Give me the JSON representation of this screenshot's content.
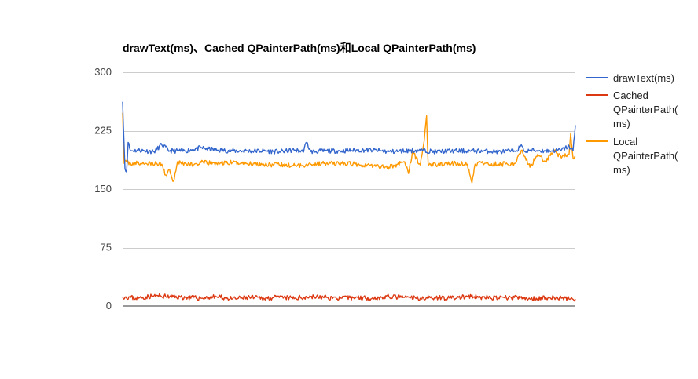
{
  "chart_data": {
    "type": "line",
    "title": "drawText(ms)、Cached QPainterPath(ms)和Local QPainterPath(ms)",
    "xlabel": "",
    "ylabel": "",
    "ylim": [
      0,
      300
    ],
    "yticks": [
      0,
      75,
      150,
      225,
      300
    ],
    "ytick_labels": [
      "0",
      "75",
      "150",
      "225",
      "300"
    ],
    "grid": true,
    "legend_position": "right",
    "series": [
      {
        "name": "drawText(ms)",
        "color": "#3366cc",
        "description_level": "around 200",
        "points": [
          [
            0,
            262
          ],
          [
            3,
            176
          ],
          [
            5,
            172
          ],
          [
            7,
            210
          ],
          [
            10,
            199
          ],
          [
            20,
            200
          ],
          [
            40,
            198
          ],
          [
            50,
            207
          ],
          [
            60,
            199
          ],
          [
            80,
            199
          ],
          [
            100,
            203
          ],
          [
            120,
            200
          ],
          [
            140,
            199
          ],
          [
            160,
            199
          ],
          [
            180,
            199
          ],
          [
            200,
            198
          ],
          [
            220,
            200
          ],
          [
            230,
            198
          ],
          [
            235,
            210
          ],
          [
            240,
            198
          ],
          [
            260,
            199
          ],
          [
            280,
            199
          ],
          [
            300,
            200
          ],
          [
            320,
            200
          ],
          [
            340,
            198
          ],
          [
            360,
            199
          ],
          [
            380,
            200
          ],
          [
            400,
            198
          ],
          [
            420,
            199
          ],
          [
            440,
            199
          ],
          [
            460,
            199
          ],
          [
            480,
            198
          ],
          [
            500,
            199
          ],
          [
            510,
            205
          ],
          [
            515,
            197
          ],
          [
            520,
            200
          ],
          [
            540,
            199
          ],
          [
            560,
            200
          ],
          [
            570,
            205
          ],
          [
            575,
            199
          ],
          [
            578,
            232
          ]
        ]
      },
      {
        "name": "Cached QPainterPath(ms)",
        "color": "#dc3912",
        "description_level": "around 10",
        "points": [
          [
            0,
            12
          ],
          [
            20,
            10
          ],
          [
            40,
            13
          ],
          [
            60,
            12
          ],
          [
            80,
            11
          ],
          [
            100,
            10
          ],
          [
            120,
            12
          ],
          [
            140,
            9
          ],
          [
            160,
            11
          ],
          [
            180,
            10
          ],
          [
            200,
            11
          ],
          [
            220,
            10
          ],
          [
            240,
            12
          ],
          [
            260,
            11
          ],
          [
            280,
            10
          ],
          [
            300,
            11
          ],
          [
            320,
            10
          ],
          [
            340,
            12
          ],
          [
            360,
            11
          ],
          [
            380,
            10
          ],
          [
            400,
            11
          ],
          [
            420,
            10
          ],
          [
            440,
            12
          ],
          [
            460,
            11
          ],
          [
            480,
            10
          ],
          [
            500,
            11
          ],
          [
            520,
            9
          ],
          [
            540,
            11
          ],
          [
            560,
            10
          ],
          [
            578,
            9
          ]
        ]
      },
      {
        "name": "Local QPainterPath(ms)",
        "color": "#ff9900",
        "description_level": "around 183",
        "points": [
          [
            0,
            248
          ],
          [
            2,
            183
          ],
          [
            5,
            185
          ],
          [
            10,
            183
          ],
          [
            30,
            183
          ],
          [
            50,
            182
          ],
          [
            55,
            168
          ],
          [
            60,
            175
          ],
          [
            65,
            160
          ],
          [
            70,
            185
          ],
          [
            80,
            183
          ],
          [
            90,
            181
          ],
          [
            100,
            184
          ],
          [
            120,
            183
          ],
          [
            140,
            184
          ],
          [
            160,
            183
          ],
          [
            180,
            182
          ],
          [
            200,
            181
          ],
          [
            220,
            180
          ],
          [
            240,
            182
          ],
          [
            260,
            183
          ],
          [
            280,
            183
          ],
          [
            300,
            182
          ],
          [
            320,
            180
          ],
          [
            340,
            178
          ],
          [
            360,
            185
          ],
          [
            365,
            170
          ],
          [
            370,
            198
          ],
          [
            380,
            181
          ],
          [
            385,
            212
          ],
          [
            388,
            244
          ],
          [
            390,
            182
          ],
          [
            400,
            181
          ],
          [
            420,
            183
          ],
          [
            440,
            182
          ],
          [
            446,
            158
          ],
          [
            450,
            182
          ],
          [
            460,
            183
          ],
          [
            480,
            182
          ],
          [
            500,
            183
          ],
          [
            510,
            200
          ],
          [
            520,
            178
          ],
          [
            530,
            195
          ],
          [
            540,
            185
          ],
          [
            550,
            200
          ],
          [
            560,
            190
          ],
          [
            570,
            195
          ],
          [
            572,
            222
          ],
          [
            575,
            190
          ],
          [
            578,
            192
          ]
        ]
      }
    ]
  }
}
